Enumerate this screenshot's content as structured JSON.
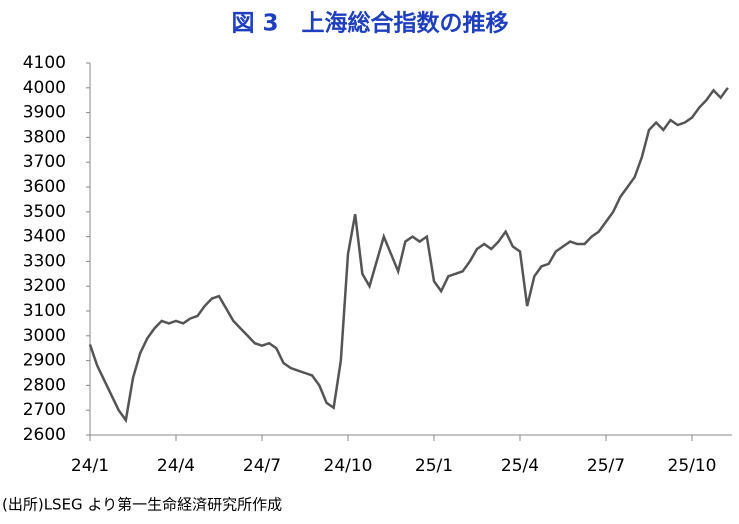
{
  "chart_data": {
    "type": "line",
    "title": "図 3　上海総合指数の推移",
    "source": "(出所)LSEG より第一生命経済研究所作成",
    "categories": [
      "24/1",
      null,
      null,
      null,
      null,
      null,
      null,
      null,
      null,
      null,
      null,
      null,
      "24/4",
      null,
      null,
      null,
      null,
      null,
      null,
      null,
      null,
      null,
      null,
      null,
      "24/7",
      null,
      null,
      null,
      null,
      null,
      null,
      null,
      null,
      null,
      null,
      null,
      "24/10",
      null,
      null,
      null,
      null,
      null,
      null,
      null,
      null,
      null,
      null,
      null,
      "25/1",
      null,
      null,
      null,
      null,
      null,
      null,
      null,
      null,
      null,
      null,
      null,
      "25/4",
      null,
      null,
      null,
      null,
      null,
      null,
      null,
      null,
      null,
      null,
      null,
      "25/7",
      null,
      null,
      null,
      null,
      null,
      null,
      null,
      null,
      null,
      null,
      null,
      "25/10",
      null,
      null,
      null,
      null,
      null
    ],
    "series": [
      {
        "name": "上海総合指数",
        "color": "#555555",
        "values": [
          2965,
          2880,
          2820,
          2760,
          2700,
          2660,
          2830,
          2930,
          2990,
          3030,
          3060,
          3050,
          3060,
          3050,
          3070,
          3080,
          3120,
          3150,
          3160,
          3110,
          3060,
          3030,
          3000,
          2970,
          2960,
          2970,
          2950,
          2890,
          2870,
          2860,
          2850,
          2840,
          2800,
          2730,
          2710,
          2900,
          3330,
          3490,
          3250,
          3200,
          3300,
          3400,
          3330,
          3260,
          3380,
          3400,
          3380,
          3400,
          3220,
          3180,
          3240,
          3250,
          3260,
          3300,
          3350,
          3370,
          3350,
          3380,
          3420,
          3360,
          3340,
          3120,
          3240,
          3280,
          3290,
          3340,
          3360,
          3380,
          3370,
          3370,
          3400,
          3420,
          3460,
          3500,
          3560,
          3600,
          3640,
          3720,
          3830,
          3860,
          3830,
          3870,
          3850,
          3860,
          3880,
          3920,
          3950,
          3990,
          3960,
          4000
        ]
      }
    ],
    "ylim": [
      2600,
      4100
    ],
    "yticks": [
      2600,
      2700,
      2800,
      2900,
      3000,
      3100,
      3200,
      3300,
      3400,
      3500,
      3600,
      3700,
      3800,
      3900,
      4000,
      4100
    ],
    "grid": false
  }
}
